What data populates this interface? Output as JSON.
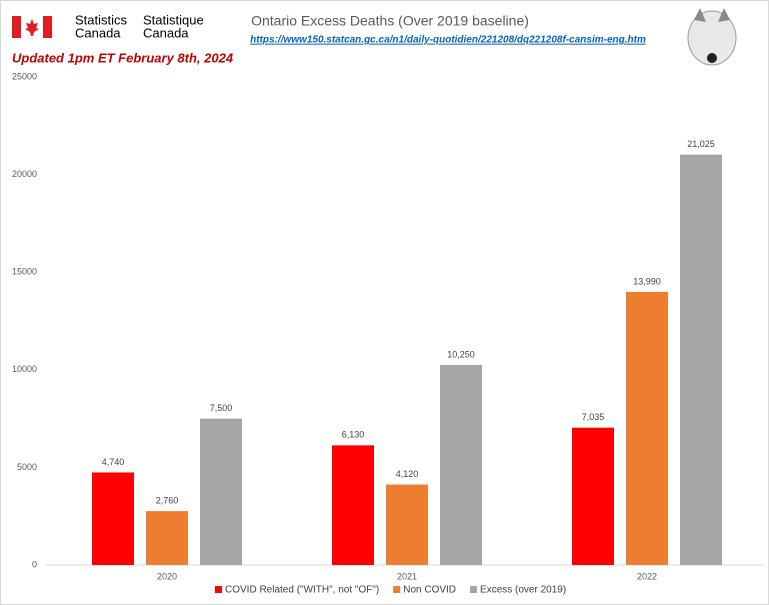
{
  "chart_data": {
    "type": "bar",
    "title": "Ontario Excess Deaths (Over 2019 baseline)",
    "link": "https://www150.statcan.gc.ca/n1/daily-quotidien/221208/dq221208f-cansim-eng.htm",
    "update_note": "Updated 1pm ET February 8th, 2024",
    "source_en": [
      "Statistics",
      "Canada"
    ],
    "source_fr": [
      "Statistique",
      "Canada"
    ],
    "categories": [
      "2020",
      "2021",
      "2022"
    ],
    "series": [
      {
        "name": "COVID Related (\"WITH\", not \"OF\")",
        "color": "#ff0000",
        "values": [
          4740,
          6130,
          7035
        ],
        "value_labels": [
          "4,740",
          "6,130",
          "7,035"
        ]
      },
      {
        "name": "Non COVID",
        "color": "#ed7d31",
        "values": [
          2760,
          4120,
          13990
        ],
        "value_labels": [
          "2,760",
          "4,120",
          "13,990"
        ]
      },
      {
        "name": "Excess (over 2019)",
        "color": "#a5a5a5",
        "values": [
          7500,
          10250,
          21025
        ],
        "value_labels": [
          "7,500",
          "10,250",
          "21,025"
        ]
      }
    ],
    "ylim": [
      0,
      25000
    ],
    "yticks": [
      0,
      5000,
      10000,
      15000,
      20000,
      25000
    ],
    "grid": false,
    "legend": "bottom"
  }
}
